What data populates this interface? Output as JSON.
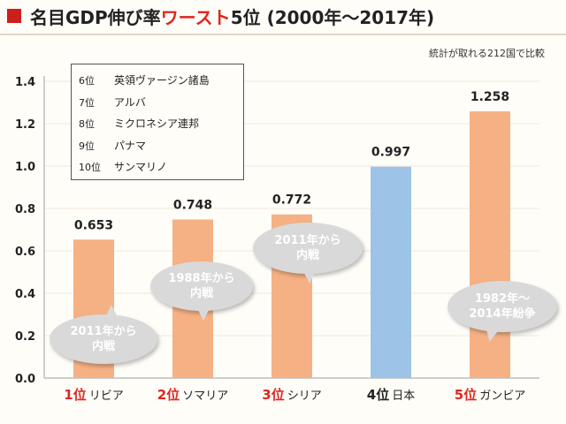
{
  "title": {
    "prefix": "名目GDP伸び率",
    "highlight": "ワースト",
    "suffix": "5位 (2000年～2017年)"
  },
  "note": "統計が取れる212国で比較",
  "legend_box": [
    {
      "rank": "6位",
      "name": "英領ヴァージン諸島"
    },
    {
      "rank": "7位",
      "name": "アルバ"
    },
    {
      "rank": "8位",
      "name": "ミクロネシア連邦"
    },
    {
      "rank": "9位",
      "name": "パナマ"
    },
    {
      "rank": "10位",
      "name": "サンマリノ"
    }
  ],
  "bubbles": [
    {
      "line1": "2011年から",
      "line2": "内戦"
    },
    {
      "line1": "1988年から",
      "line2": "内戦"
    },
    {
      "line1": "2011年から",
      "line2": "内戦"
    },
    {
      "line1": "1982年～",
      "line2": "2014年紛争"
    }
  ],
  "colors": {
    "bar_default": "#f5b184",
    "bar_japan": "#9dc3e6",
    "rank_red": "#e0261f",
    "axis_line": "#bfbfbf",
    "grid_line": "#f0e6da"
  },
  "chart_data": {
    "type": "bar",
    "categories": [
      {
        "rank": "1位",
        "name": "リビア"
      },
      {
        "rank": "2位",
        "name": "ソマリア"
      },
      {
        "rank": "3位",
        "name": "シリア"
      },
      {
        "rank": "4位",
        "name": "日本"
      },
      {
        "rank": "5位",
        "name": "ガンビア"
      }
    ],
    "values": [
      0.653,
      0.748,
      0.772,
      0.997,
      1.258
    ],
    "value_labels": [
      "0.653",
      "0.748",
      "0.772",
      "0.997",
      "1.258"
    ],
    "yticks": [
      "0.0",
      "0.2",
      "0.4",
      "0.6",
      "0.8",
      "1.0",
      "1.2",
      "1.4"
    ],
    "ylim": [
      0,
      1.4
    ],
    "highlight_category": "日本",
    "grid": true
  }
}
